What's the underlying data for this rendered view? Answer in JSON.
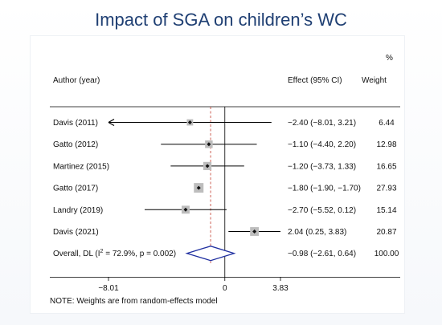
{
  "slide": {
    "title": "Impact of SGA on children’s WC"
  },
  "chart_data": {
    "type": "forest",
    "title": "Impact of SGA on children’s WC",
    "headers": {
      "author": "Author (year)",
      "effect": "Effect (95% CI)",
      "weight_unit": "%",
      "weight": "Weight"
    },
    "studies": [
      {
        "label": "Davis (2011)",
        "estimate": -2.4,
        "lower": -8.01,
        "upper": 3.21,
        "arrow_left": true,
        "effect_text": "−2.40 (−8.01, 3.21)",
        "weight": "6.44"
      },
      {
        "label": "Gatto (2012)",
        "estimate": -1.1,
        "lower": -4.4,
        "upper": 2.2,
        "arrow_left": false,
        "effect_text": "−1.10 (−4.40, 2.20)",
        "weight": "12.98"
      },
      {
        "label": "Martinez (2015)",
        "estimate": -1.2,
        "lower": -3.73,
        "upper": 1.33,
        "arrow_left": false,
        "effect_text": "−1.20 (−3.73, 1.33)",
        "weight": "16.65"
      },
      {
        "label": "Gatto (2017)",
        "estimate": -1.8,
        "lower": -1.9,
        "upper": -1.7,
        "arrow_left": false,
        "effect_text": "−1.80 (−1.90, −1.70)",
        "weight": "27.93"
      },
      {
        "label": "Landry (2019)",
        "estimate": -2.7,
        "lower": -5.52,
        "upper": 0.12,
        "arrow_left": false,
        "effect_text": "−2.70 (−5.52, 0.12)",
        "weight": "15.14"
      },
      {
        "label": "Davis (2021)",
        "estimate": 2.04,
        "lower": 0.25,
        "upper": 3.83,
        "arrow_left": false,
        "effect_text": "2.04 (0.25, 3.83)",
        "weight": "20.87"
      }
    ],
    "overall": {
      "label_prefix": "Overall, DL (I",
      "label_sup": "2",
      "label_suffix": " = 72.9%, p = 0.002)",
      "estimate": -0.98,
      "lower": -2.61,
      "upper": 0.64,
      "effect_text": "−0.98 (−2.61, 0.64)",
      "weight": "100.00"
    },
    "x_ticks": [
      {
        "value": -8.01,
        "label": "−8.01"
      },
      {
        "value": 0,
        "label": "0"
      },
      {
        "value": 3.83,
        "label": "3.83"
      }
    ],
    "xlim": [
      -8.01,
      3.83
    ],
    "null_line": 0,
    "reference_line": -0.98,
    "note": "NOTE: Weights are from random-effects model",
    "colors": {
      "title": "#1f3f73",
      "ci_line": "#000000",
      "box_fill": "#bdbdbd",
      "diamond": "#1f2fa0",
      "reference_line": "#c0392b"
    }
  }
}
